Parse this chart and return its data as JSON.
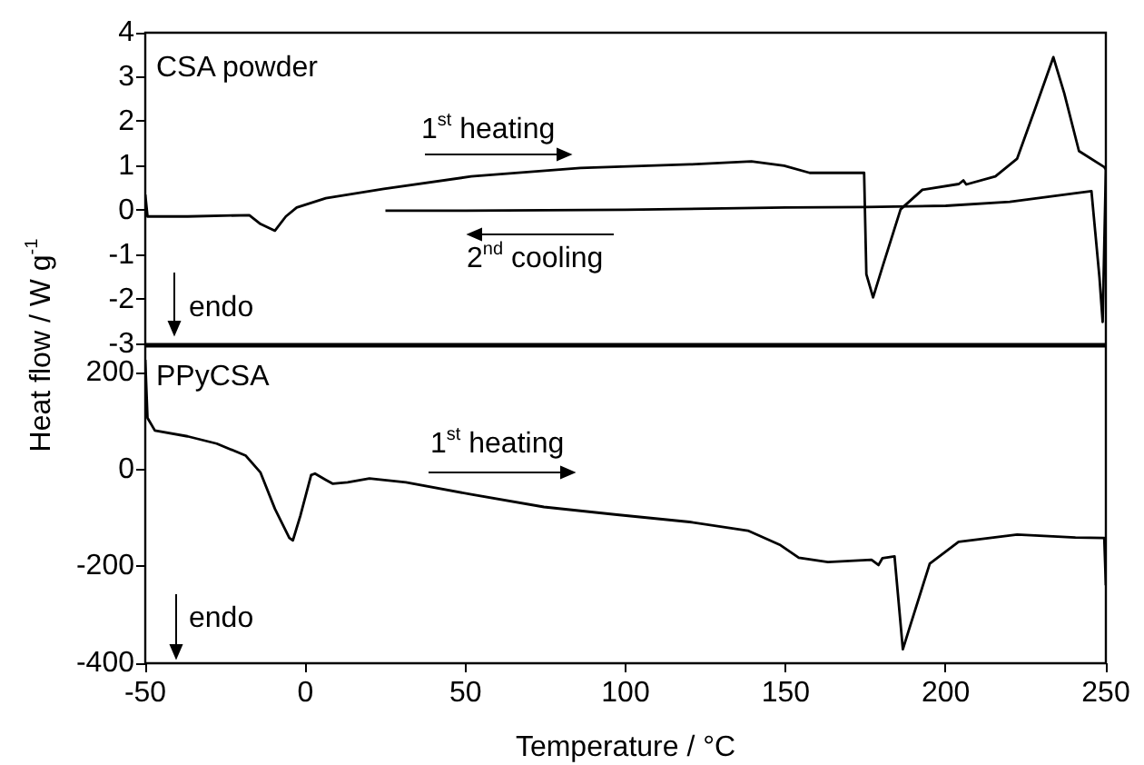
{
  "chart_data": [
    {
      "type": "line",
      "ylabel": "Heat flow / W g$^{-1}$",
      "annotations": [
        "CSA powder",
        "1$^{st}$ heating",
        "2$^{nd}$ cooling",
        "endo"
      ],
      "xlim": [
        -50,
        250
      ],
      "xticks": [
        -50,
        0,
        50,
        100,
        150,
        200,
        250
      ],
      "ylim": [
        -3,
        4
      ],
      "yticks": [
        -3,
        -2,
        -1,
        0,
        1,
        2,
        3,
        4
      ],
      "tick_labels": "y",
      "grid": false,
      "legend": false,
      "marker": "none",
      "series": [
        {
          "color": "#000000",
          "x": [
            -50,
            -49.3,
            -36.8,
            -17.5,
            -14,
            -9.5,
            -6.1,
            -2.7,
            6.4,
            24.5,
            51.8,
            85.9,
            120,
            139.3,
            149.5,
            157.5,
            167.7,
            174.5,
            175.2,
            177.3,
            180.2,
            185.9,
            192.7,
            204.1,
            205.5,
            206.4,
            215.5,
            222.3,
            228,
            233.6,
            237,
            241.6,
            249.5,
            250
          ],
          "values": [
            0.36,
            -0.13,
            -0.13,
            -0.1,
            -0.3,
            -0.45,
            -0.13,
            0.07,
            0.28,
            0.49,
            0.77,
            0.96,
            1.04,
            1.11,
            1.01,
            0.85,
            0.85,
            0.85,
            -1.43,
            -1.95,
            -1.27,
            0.03,
            0.47,
            0.6,
            0.68,
            0.59,
            0.77,
            1.17,
            2.31,
            3.45,
            2.64,
            1.34,
            0.98,
            0.93
          ]
        },
        {
          "color": "#000000",
          "x": [
            250,
            249,
            248,
            245.5,
            240,
            220,
            200,
            175,
            150,
            100,
            50,
            25
          ],
          "values": [
            0.93,
            -2.5,
            -1.5,
            0.44,
            0.39,
            0.2,
            0.11,
            0.08,
            0.07,
            0.02,
            0,
            0
          ]
        }
      ]
    },
    {
      "type": "line",
      "xlabel": "Temperature / °C",
      "annotations": [
        "PPyCSA",
        "1$^{st}$ heating",
        "endo"
      ],
      "xlim": [
        -50,
        250
      ],
      "xticks": [
        -50,
        0,
        50,
        100,
        150,
        200,
        250
      ],
      "ylim": [
        -400,
        255
      ],
      "yticks": [
        -400,
        -200,
        0,
        200
      ],
      "grid": false,
      "legend": false,
      "marker": "none",
      "series": [
        {
          "color": "#000000",
          "x": [
            -50,
            -49.3,
            -47,
            -36.8,
            -27.7,
            -18.6,
            -14,
            -9.5,
            -5,
            -3.9,
            -1.6,
            1.8,
            3,
            6.4,
            8.6,
            13.2,
            20,
            31.4,
            51.8,
            74.5,
            97.3,
            120,
            138.2,
            148.4,
            154.1,
            163.2,
            176.8,
            179,
            180.2,
            184,
            186.6,
            189.3,
            195,
            204,
            222.3,
            240.5,
            249.5,
            250
          ],
          "values": [
            227,
            107,
            81,
            69,
            54,
            29,
            -6,
            -81,
            -141,
            -146,
            -96,
            -11,
            -8,
            -21,
            -29,
            -26,
            -18,
            -26,
            -51,
            -77,
            -93,
            -108,
            -126,
            -156,
            -182,
            -191,
            -186,
            -197,
            -183,
            -179,
            -371,
            -314,
            -194,
            -149,
            -134,
            -140,
            -141,
            -239
          ]
        }
      ]
    }
  ]
}
